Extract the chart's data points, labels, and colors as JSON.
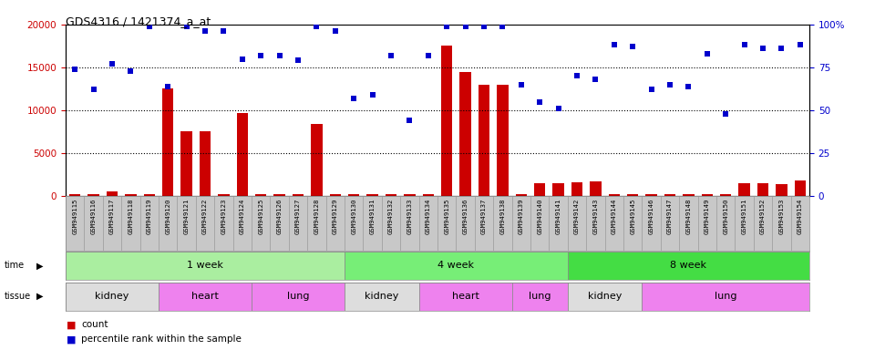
{
  "title": "GDS4316 / 1421374_a_at",
  "gsm_labels": [
    "GSM949115",
    "GSM949116",
    "GSM949117",
    "GSM949118",
    "GSM949119",
    "GSM949120",
    "GSM949121",
    "GSM949122",
    "GSM949123",
    "GSM949124",
    "GSM949125",
    "GSM949126",
    "GSM949127",
    "GSM949128",
    "GSM949129",
    "GSM949130",
    "GSM949131",
    "GSM949132",
    "GSM949133",
    "GSM949134",
    "GSM949135",
    "GSM949136",
    "GSM949137",
    "GSM949138",
    "GSM949139",
    "GSM949140",
    "GSM949141",
    "GSM949142",
    "GSM949143",
    "GSM949144",
    "GSM949145",
    "GSM949146",
    "GSM949147",
    "GSM949148",
    "GSM949149",
    "GSM949150",
    "GSM949151",
    "GSM949152",
    "GSM949153",
    "GSM949154"
  ],
  "count_values": [
    200,
    200,
    500,
    200,
    200,
    12500,
    7500,
    7500,
    200,
    9700,
    200,
    200,
    200,
    8400,
    200,
    200,
    200,
    200,
    200,
    200,
    17500,
    14500,
    13000,
    13000,
    200,
    1500,
    1500,
    1600,
    1700,
    200,
    200,
    200,
    200,
    200,
    200,
    200,
    1500,
    1500,
    1400,
    1800
  ],
  "percentile_values": [
    74,
    62,
    77,
    73,
    99,
    64,
    99,
    96,
    96,
    80,
    82,
    82,
    79,
    99,
    96,
    57,
    59,
    82,
    44,
    82,
    99,
    99,
    99,
    99,
    65,
    55,
    51,
    70,
    68,
    88,
    87,
    62,
    65,
    64,
    83,
    48,
    88,
    86,
    86,
    88
  ],
  "time_groups": [
    {
      "label": "1 week",
      "start": 0,
      "end": 15,
      "color": "#AAEEA0"
    },
    {
      "label": "4 week",
      "start": 15,
      "end": 27,
      "color": "#77DD77"
    },
    {
      "label": "8 week",
      "start": 27,
      "end": 40,
      "color": "#44CC44"
    }
  ],
  "tissue_groups": [
    {
      "label": "kidney",
      "start": 0,
      "end": 5,
      "color": "#DDDDDD"
    },
    {
      "label": "heart",
      "start": 5,
      "end": 10,
      "color": "#EE82EE"
    },
    {
      "label": "lung",
      "start": 10,
      "end": 15,
      "color": "#EE82EE"
    },
    {
      "label": "kidney",
      "start": 15,
      "end": 19,
      "color": "#DDDDDD"
    },
    {
      "label": "heart",
      "start": 19,
      "end": 24,
      "color": "#EE82EE"
    },
    {
      "label": "lung",
      "start": 24,
      "end": 27,
      "color": "#EE82EE"
    },
    {
      "label": "kidney",
      "start": 27,
      "end": 31,
      "color": "#DDDDDD"
    },
    {
      "label": "lung",
      "start": 31,
      "end": 40,
      "color": "#EE82EE"
    }
  ],
  "ylim_left": [
    0,
    20000
  ],
  "ylim_right": [
    0,
    100
  ],
  "yticks_left": [
    0,
    5000,
    10000,
    15000,
    20000
  ],
  "yticks_right": [
    0,
    25,
    50,
    75,
    100
  ],
  "bar_color": "#CC0000",
  "dot_color": "#0000CC",
  "label_bg": "#C8C8C8",
  "plot_bg": "#FFFFFF",
  "time_colors": [
    "#AAEEA0",
    "#77EE77",
    "#44DD44"
  ],
  "tissue_colors": [
    "#DDDDDD",
    "#EE82EE",
    "#EE82EE",
    "#DDDDDD",
    "#EE82EE",
    "#EE82EE",
    "#DDDDDD",
    "#EE82EE"
  ]
}
